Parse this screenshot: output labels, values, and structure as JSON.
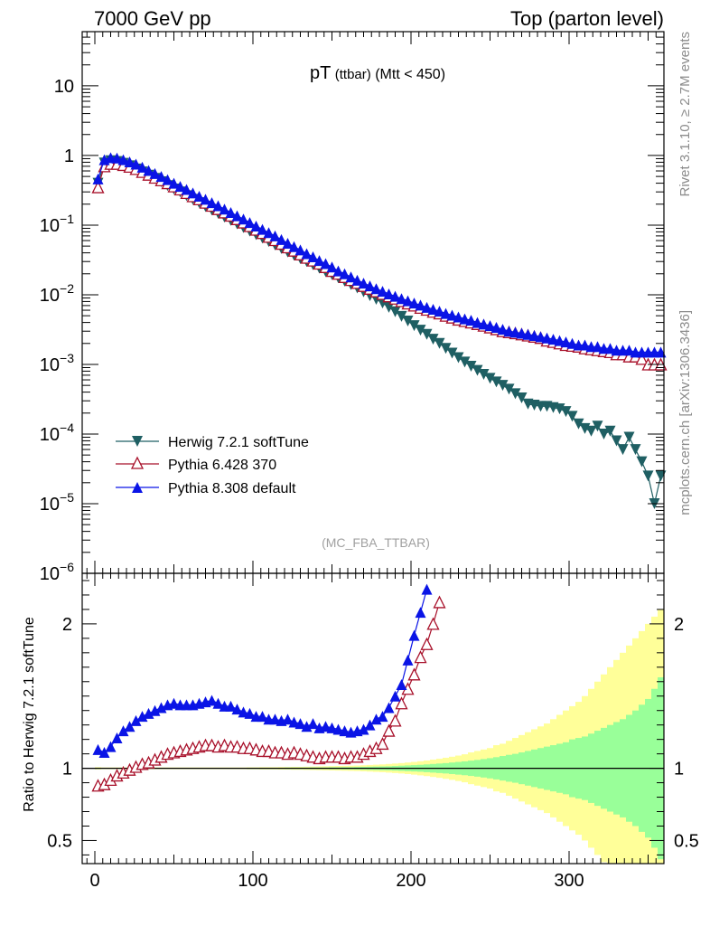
{
  "header": {
    "left": "7000 GeV pp",
    "right": "Top (parton level)"
  },
  "side_labels": {
    "rivet": "Rivet 3.1.10, ≥ 2.7M events",
    "mcplots": "mcplots.cern.ch [arXiv:1306.3436]"
  },
  "chart_data": [
    {
      "type": "scatter",
      "panel": "main",
      "title_main": "pT",
      "title_sub": "(ttbar)",
      "title_cut": "(Mtt < 450)",
      "analysis": "(MC_FBA_TTBAR)",
      "yscale": "log",
      "xlim": [
        -8,
        360
      ],
      "ylim": [
        1e-06,
        60
      ],
      "y_ticklabels": [
        "10^-6",
        "10^-5",
        "10^-4",
        "10^-3",
        "10^-2",
        "10^-1",
        "1",
        "10"
      ],
      "legend_position": "bottom-left",
      "series": [
        {
          "name": "Herwig 7.2.1 softTune",
          "color": "#1f5f63",
          "marker": "triangle-down",
          "x": [
            2,
            6,
            10,
            14,
            18,
            22,
            26,
            30,
            34,
            38,
            42,
            46,
            50,
            54,
            58,
            62,
            66,
            70,
            74,
            78,
            82,
            86,
            90,
            94,
            98,
            102,
            106,
            110,
            114,
            118,
            122,
            126,
            130,
            134,
            138,
            142,
            146,
            150,
            154,
            158,
            162,
            166,
            170,
            174,
            178,
            182,
            186,
            190,
            194,
            198,
            202,
            206,
            210,
            214,
            218,
            222,
            226,
            230,
            234,
            238,
            242,
            246,
            250,
            254,
            258,
            262,
            266,
            270,
            274,
            278,
            282,
            286,
            290,
            294,
            298,
            302,
            306,
            310,
            314,
            318,
            322,
            326,
            330,
            334,
            338,
            342,
            346,
            350,
            354,
            358
          ],
          "y": [
            0.4,
            0.78,
            0.84,
            0.82,
            0.77,
            0.71,
            0.64,
            0.58,
            0.52,
            0.47,
            0.42,
            0.37,
            0.33,
            0.3,
            0.265,
            0.235,
            0.21,
            0.185,
            0.165,
            0.148,
            0.13,
            0.117,
            0.104,
            0.092,
            0.082,
            0.073,
            0.065,
            0.058,
            0.052,
            0.046,
            0.041,
            0.037,
            0.033,
            0.03,
            0.027,
            0.024,
            0.0215,
            0.0195,
            0.0175,
            0.0157,
            0.014,
            0.0125,
            0.011,
            0.0097,
            0.0086,
            0.0076,
            0.0066,
            0.0057,
            0.0049,
            0.0042,
            0.0036,
            0.0031,
            0.0027,
            0.0023,
            0.002,
            0.0017,
            0.00145,
            0.00125,
            0.00108,
            0.00094,
            0.00082,
            0.00072,
            0.00063,
            0.00056,
            0.0005,
            0.00044,
            0.00038,
            0.00033,
            0.00027,
            0.00026,
            0.00025,
            0.00025,
            0.00024,
            0.00023,
            0.00021,
            0.00018,
            0.00014,
            0.00012,
            0.00011,
            0.00013,
            0.0001,
            0.00011,
            8e-05,
            6e-05,
            9e-05,
            6e-05,
            4e-05,
            2.5e-05,
            1e-05,
            2.5e-05
          ]
        },
        {
          "name": "Pythia 6.428 370",
          "color": "#a8102a",
          "marker": "triangle-up-open",
          "x": [
            2,
            6,
            10,
            14,
            18,
            22,
            26,
            30,
            34,
            38,
            42,
            46,
            50,
            54,
            58,
            62,
            66,
            70,
            74,
            78,
            82,
            86,
            90,
            94,
            98,
            102,
            106,
            110,
            114,
            118,
            122,
            126,
            130,
            134,
            138,
            142,
            146,
            150,
            154,
            158,
            162,
            166,
            170,
            174,
            178,
            182,
            186,
            190,
            194,
            198,
            202,
            206,
            210,
            214,
            218,
            222,
            226,
            230,
            234,
            238,
            242,
            246,
            250,
            254,
            258,
            262,
            266,
            270,
            274,
            278,
            282,
            286,
            290,
            294,
            298,
            302,
            306,
            310,
            314,
            318,
            322,
            326,
            330,
            334,
            338,
            342,
            346,
            350,
            354,
            358
          ],
          "y": [
            0.35,
            0.7,
            0.76,
            0.76,
            0.73,
            0.69,
            0.64,
            0.58,
            0.53,
            0.48,
            0.44,
            0.4,
            0.36,
            0.325,
            0.29,
            0.26,
            0.235,
            0.21,
            0.19,
            0.17,
            0.152,
            0.137,
            0.122,
            0.109,
            0.097,
            0.086,
            0.077,
            0.068,
            0.061,
            0.054,
            0.048,
            0.043,
            0.038,
            0.034,
            0.031,
            0.028,
            0.025,
            0.022,
            0.02,
            0.018,
            0.0163,
            0.0148,
            0.0134,
            0.0122,
            0.0112,
            0.0103,
            0.0095,
            0.0088,
            0.0081,
            0.0075,
            0.007,
            0.0065,
            0.0061,
            0.0057,
            0.0054,
            0.005,
            0.0047,
            0.0044,
            0.0042,
            0.004,
            0.0038,
            0.0036,
            0.0034,
            0.0032,
            0.003,
            0.0029,
            0.0028,
            0.0027,
            0.0026,
            0.0025,
            0.0024,
            0.0022,
            0.0021,
            0.002,
            0.0019,
            0.00185,
            0.0018,
            0.0017,
            0.00165,
            0.0016,
            0.00155,
            0.0015,
            0.0014,
            0.0014,
            0.0013,
            0.0013,
            0.0012,
            0.001,
            0.001,
            0.001
          ]
        },
        {
          "name": "Pythia 8.308 default",
          "color": "#0a14e6",
          "marker": "triangle-up",
          "x": [
            2,
            6,
            10,
            14,
            18,
            22,
            26,
            30,
            34,
            38,
            42,
            46,
            50,
            54,
            58,
            62,
            66,
            70,
            74,
            78,
            82,
            86,
            90,
            94,
            98,
            102,
            106,
            110,
            114,
            118,
            122,
            126,
            130,
            134,
            138,
            142,
            146,
            150,
            154,
            158,
            162,
            166,
            170,
            174,
            178,
            182,
            186,
            190,
            194,
            198,
            202,
            206,
            210,
            214,
            218,
            222,
            226,
            230,
            234,
            238,
            242,
            246,
            250,
            254,
            258,
            262,
            266,
            270,
            274,
            278,
            282,
            286,
            290,
            294,
            298,
            302,
            306,
            310,
            314,
            318,
            322,
            326,
            330,
            334,
            338,
            342,
            346,
            350,
            354,
            358
          ],
          "y": [
            0.46,
            0.87,
            0.93,
            0.92,
            0.87,
            0.81,
            0.75,
            0.68,
            0.61,
            0.55,
            0.5,
            0.45,
            0.4,
            0.36,
            0.325,
            0.29,
            0.26,
            0.235,
            0.21,
            0.19,
            0.17,
            0.152,
            0.136,
            0.122,
            0.109,
            0.097,
            0.087,
            0.078,
            0.07,
            0.062,
            0.055,
            0.049,
            0.044,
            0.039,
            0.035,
            0.031,
            0.028,
            0.025,
            0.022,
            0.02,
            0.018,
            0.0162,
            0.0147,
            0.0134,
            0.0122,
            0.0112,
            0.0103,
            0.0095,
            0.0088,
            0.0082,
            0.0076,
            0.0071,
            0.0066,
            0.0062,
            0.0058,
            0.0054,
            0.0051,
            0.0048,
            0.0045,
            0.0043,
            0.004,
            0.0038,
            0.0036,
            0.0034,
            0.0032,
            0.003,
            0.0029,
            0.0028,
            0.0027,
            0.0026,
            0.0025,
            0.0024,
            0.0023,
            0.0022,
            0.0021,
            0.002,
            0.0019,
            0.0019,
            0.0018,
            0.0018,
            0.0017,
            0.0017,
            0.0016,
            0.0016,
            0.0016,
            0.0015,
            0.0015,
            0.0015,
            0.0015,
            0.0015
          ]
        }
      ]
    },
    {
      "type": "scatter",
      "panel": "ratio",
      "ylabel": "Ratio to Herwig 7.2.1 softTune",
      "xlim": [
        -8,
        360
      ],
      "ylim": [
        0.34,
        2.35
      ],
      "x_ticklabels": [
        "0",
        "100",
        "200",
        "300"
      ],
      "y_ticklabels": [
        "0.5",
        "1",
        "2"
      ],
      "band_x": [
        2,
        6,
        10,
        14,
        18,
        22,
        26,
        30,
        34,
        38,
        42,
        46,
        50,
        54,
        58,
        62,
        66,
        70,
        74,
        78,
        82,
        86,
        90,
        94,
        98,
        102,
        106,
        110,
        114,
        118,
        122,
        126,
        130,
        134,
        138,
        142,
        146,
        150,
        154,
        158,
        162,
        166,
        170,
        174,
        178,
        182,
        186,
        190,
        194,
        198,
        202,
        206,
        210,
        214,
        218,
        222,
        226,
        230,
        234,
        238,
        242,
        246,
        250,
        254,
        258,
        262,
        266,
        270,
        274,
        278,
        282,
        286,
        290,
        294,
        298,
        302,
        306,
        310,
        314,
        318,
        322,
        326,
        330,
        334,
        338,
        342,
        346,
        350,
        354,
        358
      ],
      "band_green": [
        0.004,
        0.003,
        0.003,
        0.003,
        0.003,
        0.003,
        0.003,
        0.003,
        0.003,
        0.003,
        0.003,
        0.003,
        0.003,
        0.003,
        0.003,
        0.003,
        0.003,
        0.003,
        0.003,
        0.003,
        0.003,
        0.003,
        0.003,
        0.003,
        0.004,
        0.004,
        0.004,
        0.004,
        0.004,
        0.004,
        0.005,
        0.005,
        0.005,
        0.005,
        0.006,
        0.006,
        0.006,
        0.007,
        0.007,
        0.008,
        0.008,
        0.009,
        0.01,
        0.011,
        0.012,
        0.013,
        0.014,
        0.016,
        0.018,
        0.02,
        0.022,
        0.024,
        0.027,
        0.03,
        0.033,
        0.036,
        0.04,
        0.044,
        0.048,
        0.053,
        0.058,
        0.064,
        0.07,
        0.077,
        0.085,
        0.093,
        0.1,
        0.11,
        0.12,
        0.13,
        0.14,
        0.15,
        0.16,
        0.17,
        0.18,
        0.2,
        0.21,
        0.22,
        0.24,
        0.26,
        0.28,
        0.3,
        0.32,
        0.34,
        0.37,
        0.4,
        0.44,
        0.48,
        0.55,
        0.63
      ],
      "band_yellow": [
        0.008,
        0.006,
        0.006,
        0.006,
        0.006,
        0.006,
        0.006,
        0.006,
        0.006,
        0.006,
        0.006,
        0.006,
        0.006,
        0.006,
        0.006,
        0.006,
        0.006,
        0.006,
        0.006,
        0.006,
        0.006,
        0.006,
        0.006,
        0.006,
        0.007,
        0.007,
        0.008,
        0.008,
        0.008,
        0.009,
        0.009,
        0.01,
        0.01,
        0.011,
        0.012,
        0.013,
        0.014,
        0.015,
        0.016,
        0.017,
        0.018,
        0.019,
        0.021,
        0.023,
        0.025,
        0.027,
        0.03,
        0.033,
        0.036,
        0.04,
        0.044,
        0.049,
        0.054,
        0.06,
        0.066,
        0.073,
        0.08,
        0.088,
        0.097,
        0.11,
        0.12,
        0.13,
        0.14,
        0.16,
        0.17,
        0.19,
        0.21,
        0.23,
        0.25,
        0.27,
        0.29,
        0.31,
        0.34,
        0.37,
        0.4,
        0.43,
        0.46,
        0.5,
        0.55,
        0.6,
        0.65,
        0.7,
        0.75,
        0.8,
        0.85,
        0.9,
        0.95,
        1.0,
        1.05,
        1.1
      ],
      "series": [
        {
          "name": "Pythia 6.428 370",
          "color": "#a8102a",
          "marker": "triangle-up-open",
          "x": [
            2,
            6,
            10,
            14,
            18,
            22,
            26,
            30,
            34,
            38,
            42,
            46,
            50,
            54,
            58,
            62,
            66,
            70,
            74,
            78,
            82,
            86,
            90,
            94,
            98,
            102,
            106,
            110,
            114,
            118,
            122,
            126,
            130,
            134,
            138,
            142,
            146,
            150,
            154,
            158,
            162,
            166,
            170,
            174,
            178,
            182,
            186,
            190,
            194,
            198,
            202,
            206,
            210,
            214,
            218
          ],
          "y": [
            0.88,
            0.89,
            0.92,
            0.95,
            0.97,
            0.99,
            1.01,
            1.03,
            1.04,
            1.06,
            1.08,
            1.1,
            1.11,
            1.12,
            1.13,
            1.14,
            1.15,
            1.16,
            1.16,
            1.15,
            1.16,
            1.15,
            1.15,
            1.14,
            1.14,
            1.13,
            1.12,
            1.12,
            1.11,
            1.11,
            1.1,
            1.11,
            1.1,
            1.09,
            1.08,
            1.07,
            1.08,
            1.08,
            1.08,
            1.07,
            1.08,
            1.08,
            1.1,
            1.12,
            1.14,
            1.17,
            1.26,
            1.33,
            1.45,
            1.55,
            1.65,
            1.77,
            1.86,
            2.0,
            2.15
          ]
        },
        {
          "name": "Pythia 8.308 default",
          "color": "#0a14e6",
          "marker": "triangle-up",
          "x": [
            2,
            6,
            10,
            14,
            18,
            22,
            26,
            30,
            34,
            38,
            42,
            46,
            50,
            54,
            58,
            62,
            66,
            70,
            74,
            78,
            82,
            86,
            90,
            94,
            98,
            102,
            106,
            110,
            114,
            118,
            122,
            126,
            130,
            134,
            138,
            142,
            146,
            150,
            154,
            158,
            162,
            166,
            170,
            174,
            178,
            182,
            186,
            190,
            194,
            198,
            202,
            206,
            210
          ],
          "y": [
            1.13,
            1.11,
            1.15,
            1.21,
            1.26,
            1.29,
            1.33,
            1.36,
            1.38,
            1.4,
            1.42,
            1.44,
            1.45,
            1.44,
            1.44,
            1.44,
            1.45,
            1.46,
            1.47,
            1.45,
            1.43,
            1.43,
            1.41,
            1.39,
            1.38,
            1.36,
            1.36,
            1.34,
            1.34,
            1.33,
            1.34,
            1.32,
            1.31,
            1.29,
            1.31,
            1.28,
            1.29,
            1.28,
            1.27,
            1.26,
            1.25,
            1.26,
            1.27,
            1.3,
            1.34,
            1.36,
            1.42,
            1.5,
            1.58,
            1.75,
            1.92,
            2.08,
            2.24
          ]
        }
      ]
    }
  ]
}
